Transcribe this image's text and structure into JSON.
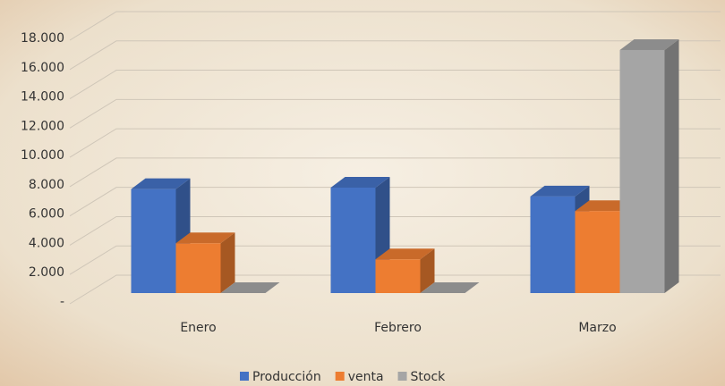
{
  "chart_data": {
    "type": "bar3d",
    "categories": [
      "Enero",
      "Febrero",
      "Marzo"
    ],
    "series": [
      {
        "name": "Producción",
        "color": "#4472c4",
        "values": [
          7100,
          7200,
          6600
        ]
      },
      {
        "name": "venta",
        "color": "#ed7d31",
        "values": [
          3400,
          2300,
          5600
        ]
      },
      {
        "name": "Stock",
        "color": "#a5a5a5",
        "values": [
          0,
          0,
          16600
        ]
      }
    ],
    "ylim": [
      0,
      18000
    ],
    "yticks": [
      {
        "value": 0,
        "label": "-"
      },
      {
        "value": 2000,
        "label": "2.000"
      },
      {
        "value": 4000,
        "label": "4.000"
      },
      {
        "value": 6000,
        "label": "6.000"
      },
      {
        "value": 8000,
        "label": "8.000"
      },
      {
        "value": 10000,
        "label": "10.000"
      },
      {
        "value": 12000,
        "label": "12.000"
      },
      {
        "value": 14000,
        "label": "14.000"
      },
      {
        "value": 16000,
        "label": "16.000"
      },
      {
        "value": 18000,
        "label": "18.000"
      }
    ],
    "grid": true,
    "legend": "bottom"
  }
}
